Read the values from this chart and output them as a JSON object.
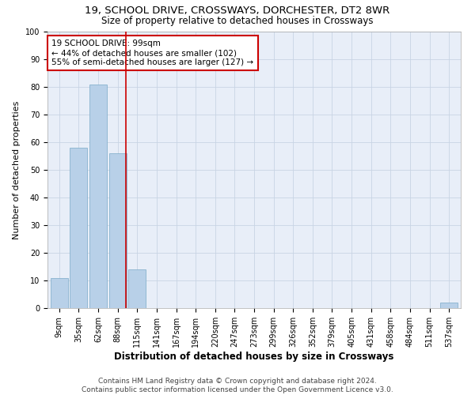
{
  "title1": "19, SCHOOL DRIVE, CROSSWAYS, DORCHESTER, DT2 8WR",
  "title2": "Size of property relative to detached houses in Crossways",
  "xlabel": "Distribution of detached houses by size in Crossways",
  "ylabel": "Number of detached properties",
  "bar_labels": [
    "9sqm",
    "35sqm",
    "62sqm",
    "88sqm",
    "115sqm",
    "141sqm",
    "167sqm",
    "194sqm",
    "220sqm",
    "247sqm",
    "273sqm",
    "299sqm",
    "326sqm",
    "352sqm",
    "379sqm",
    "405sqm",
    "431sqm",
    "458sqm",
    "484sqm",
    "511sqm",
    "537sqm"
  ],
  "bar_values": [
    11,
    58,
    81,
    56,
    14,
    0,
    0,
    0,
    0,
    0,
    0,
    0,
    0,
    0,
    0,
    0,
    0,
    0,
    0,
    0,
    2
  ],
  "bar_color": "#b8d0e8",
  "bar_edge_color": "#7aaac8",
  "vline_color": "#cc0000",
  "vline_pos": 3.41,
  "annotation_text": "19 SCHOOL DRIVE: 99sqm\n← 44% of detached houses are smaller (102)\n55% of semi-detached houses are larger (127) →",
  "annotation_box_color": "#ffffff",
  "annotation_box_edge": "#cc0000",
  "ylim": [
    0,
    100
  ],
  "yticks": [
    0,
    10,
    20,
    30,
    40,
    50,
    60,
    70,
    80,
    90,
    100
  ],
  "grid_color": "#c8d4e4",
  "bg_color": "#e8eef8",
  "footnote": "Contains HM Land Registry data © Crown copyright and database right 2024.\nContains public sector information licensed under the Open Government Licence v3.0.",
  "title1_fontsize": 9.5,
  "title2_fontsize": 8.5,
  "xlabel_fontsize": 8.5,
  "ylabel_fontsize": 8,
  "tick_fontsize": 7,
  "annotation_fontsize": 7.5,
  "footnote_fontsize": 6.5
}
